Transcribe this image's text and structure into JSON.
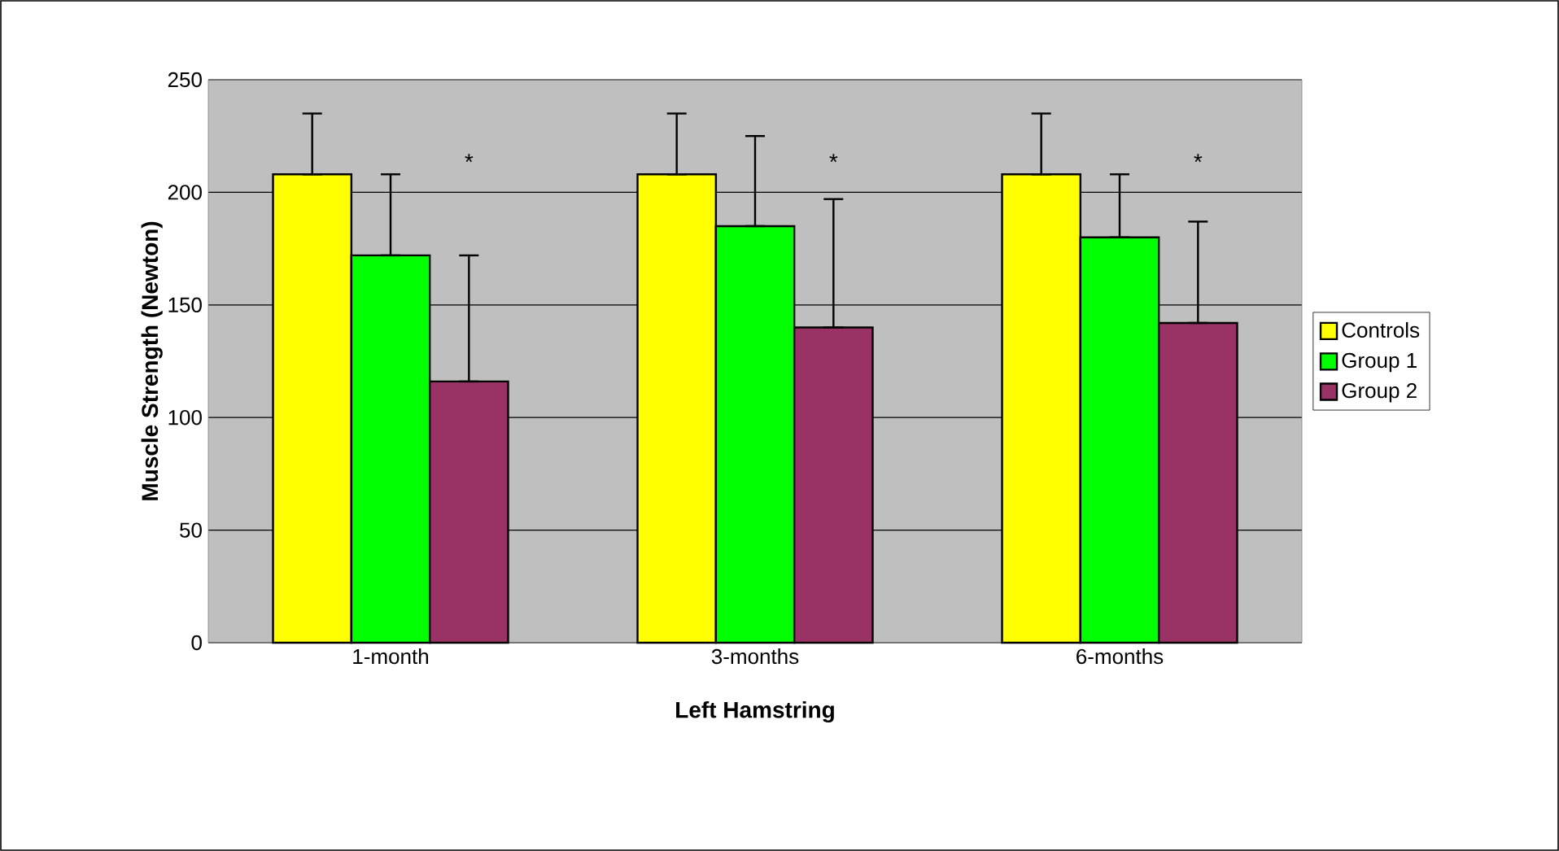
{
  "chart_data": {
    "type": "bar",
    "xlabel": "Left Hamstring",
    "ylabel": "Muscle Strength (Newton)",
    "categories": [
      "1-month",
      "3-months",
      "6-months"
    ],
    "series": [
      {
        "name": "Controls",
        "color": "#ffff00",
        "values": [
          208,
          208,
          208
        ],
        "errors": [
          [
            208,
            235
          ],
          [
            208,
            235
          ],
          [
            208,
            235
          ]
        ]
      },
      {
        "name": "Group 1",
        "color": "#00ff00",
        "values": [
          172,
          185,
          180
        ],
        "errors": [
          [
            172,
            208
          ],
          [
            185,
            225
          ],
          [
            180,
            208
          ]
        ]
      },
      {
        "name": "Group 2",
        "color": "#993366",
        "values": [
          116,
          140,
          142
        ],
        "errors": [
          [
            116,
            172
          ],
          [
            140,
            197
          ],
          [
            142,
            187
          ]
        ]
      }
    ],
    "annotations": [
      "*",
      "*",
      "*"
    ],
    "ylim": [
      0,
      250
    ],
    "yticks": [
      0,
      50,
      100,
      150,
      200,
      250
    ],
    "grid": "y",
    "legend": "right"
  }
}
